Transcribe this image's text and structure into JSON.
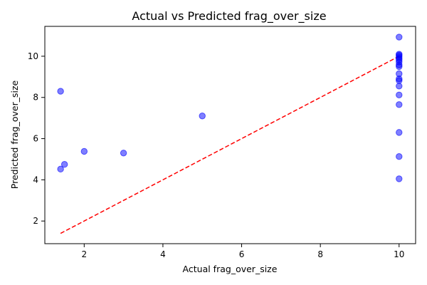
{
  "chart_data": {
    "type": "scatter",
    "title": "Actual vs Predicted frag_over_size",
    "xlabel": "Actual frag_over_size",
    "ylabel": "Predicted frag_over_size",
    "xlim": [
      1.0,
      10.42
    ],
    "ylim": [
      0.9,
      11.45
    ],
    "xticks": [
      2,
      4,
      6,
      8,
      10
    ],
    "yticks": [
      2,
      4,
      6,
      8,
      10
    ],
    "grid": false,
    "point_color": "#0000ff",
    "point_alpha": 0.5,
    "reference_line": {
      "x": [
        1.4,
        10.0
      ],
      "y": [
        1.4,
        10.0
      ],
      "color": "#ff0000",
      "style": "dashed"
    },
    "points": [
      {
        "x": 1.4,
        "y": 8.3
      },
      {
        "x": 1.4,
        "y": 4.52
      },
      {
        "x": 1.5,
        "y": 4.75
      },
      {
        "x": 2.0,
        "y": 5.38
      },
      {
        "x": 3.0,
        "y": 5.3
      },
      {
        "x": 5.0,
        "y": 7.1
      },
      {
        "x": 10.0,
        "y": 10.93
      },
      {
        "x": 10.0,
        "y": 10.1
      },
      {
        "x": 10.0,
        "y": 10.05
      },
      {
        "x": 10.0,
        "y": 9.98
      },
      {
        "x": 10.0,
        "y": 9.9
      },
      {
        "x": 10.0,
        "y": 9.82
      },
      {
        "x": 10.0,
        "y": 9.72
      },
      {
        "x": 10.0,
        "y": 9.58
      },
      {
        "x": 10.0,
        "y": 9.5
      },
      {
        "x": 10.0,
        "y": 9.15
      },
      {
        "x": 10.0,
        "y": 8.9
      },
      {
        "x": 10.0,
        "y": 8.82
      },
      {
        "x": 10.0,
        "y": 8.55
      },
      {
        "x": 10.0,
        "y": 8.12
      },
      {
        "x": 10.0,
        "y": 7.65
      },
      {
        "x": 10.0,
        "y": 6.3
      },
      {
        "x": 10.0,
        "y": 5.13
      },
      {
        "x": 10.0,
        "y": 4.05
      }
    ]
  }
}
